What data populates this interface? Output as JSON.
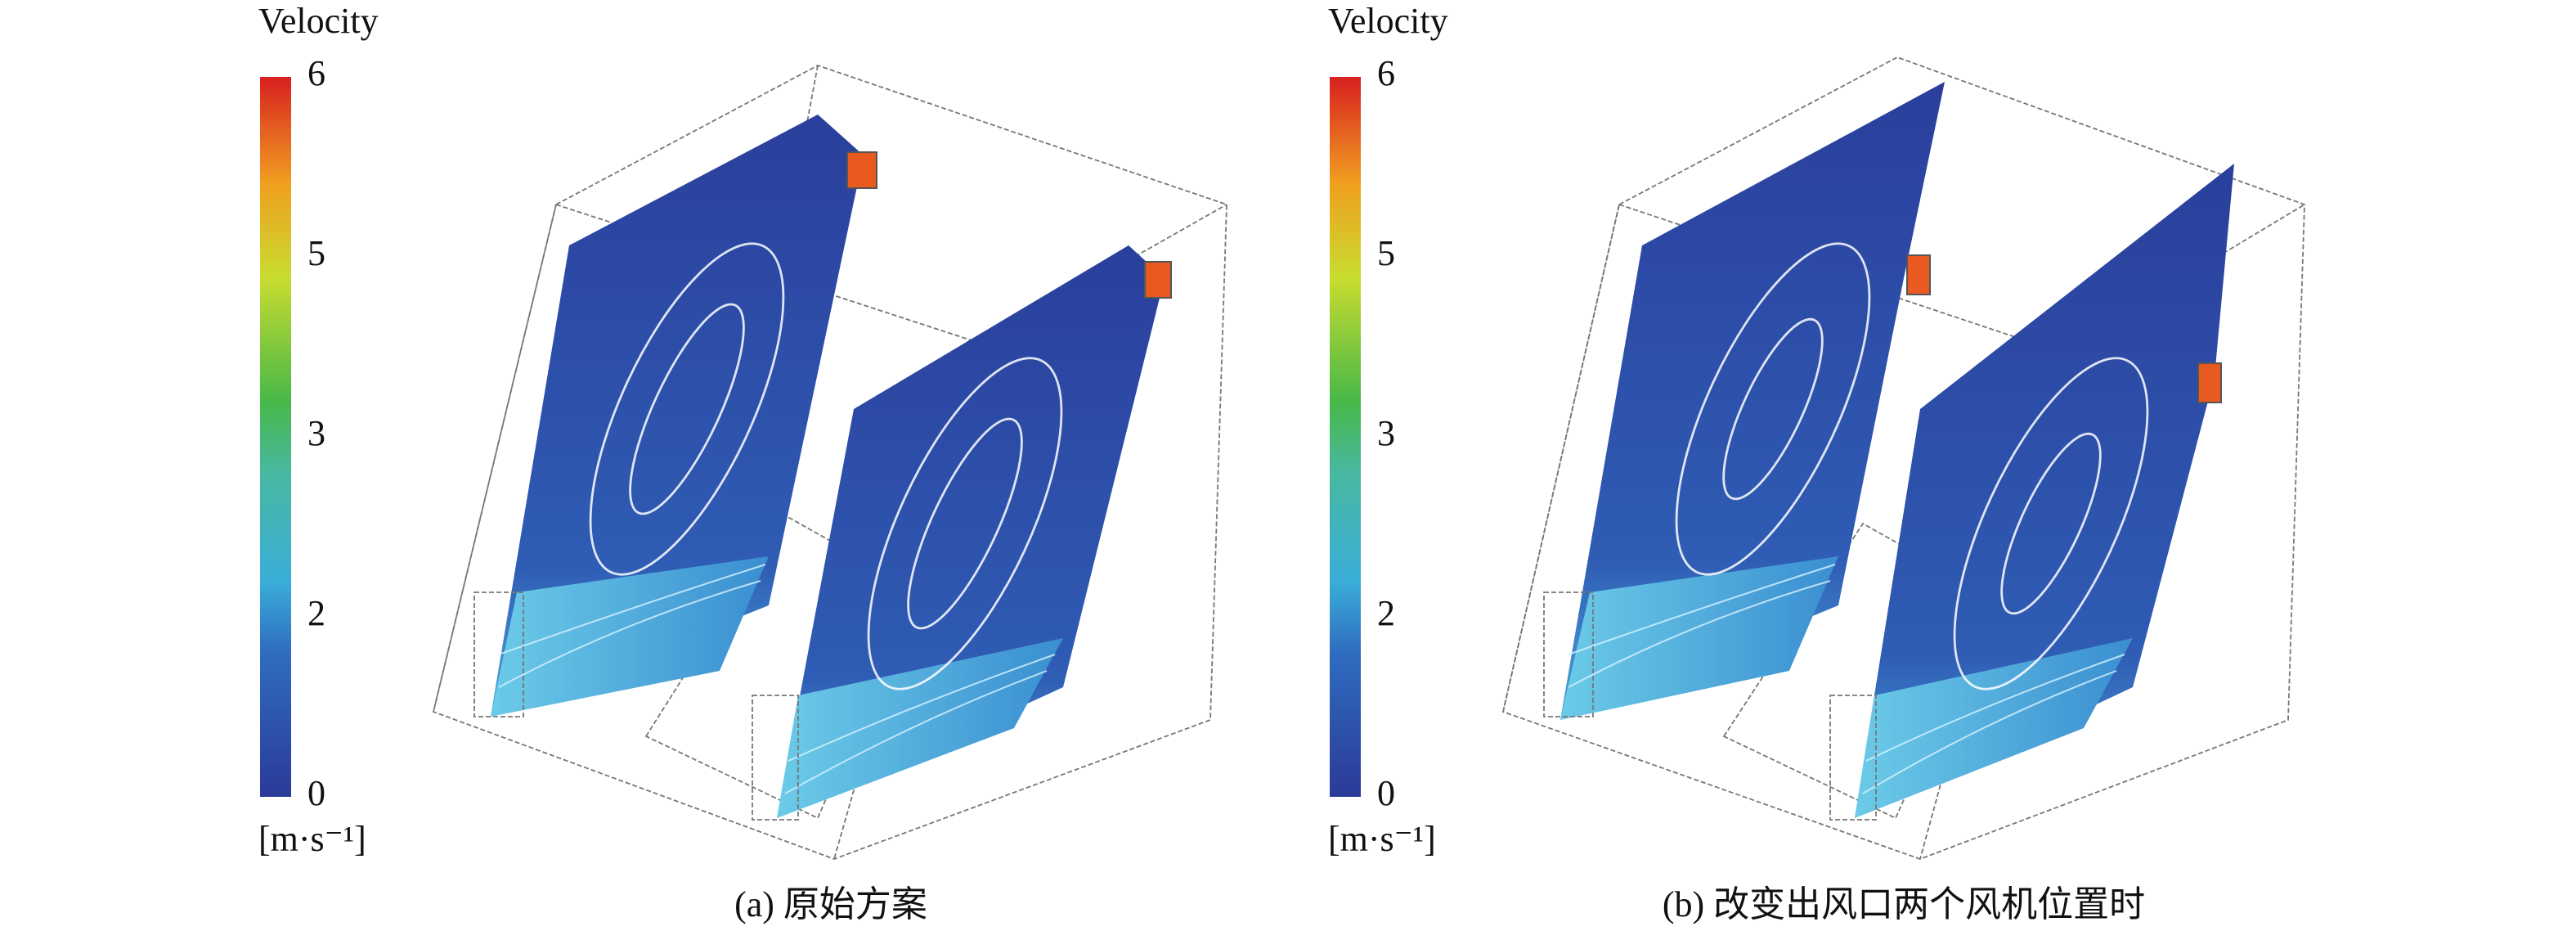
{
  "panels": [
    {
      "colorbar": {
        "title": "Velocity",
        "ticks": [
          6,
          5,
          3,
          2,
          0
        ],
        "unit": "[m·s⁻¹]"
      },
      "caption": "(a) 原始方案"
    },
    {
      "colorbar": {
        "title": "Velocity",
        "ticks": [
          6,
          5,
          3,
          2,
          0
        ],
        "unit": "[m·s⁻¹]"
      },
      "caption": "(b) 改变出风口两个风机位置时"
    }
  ]
}
